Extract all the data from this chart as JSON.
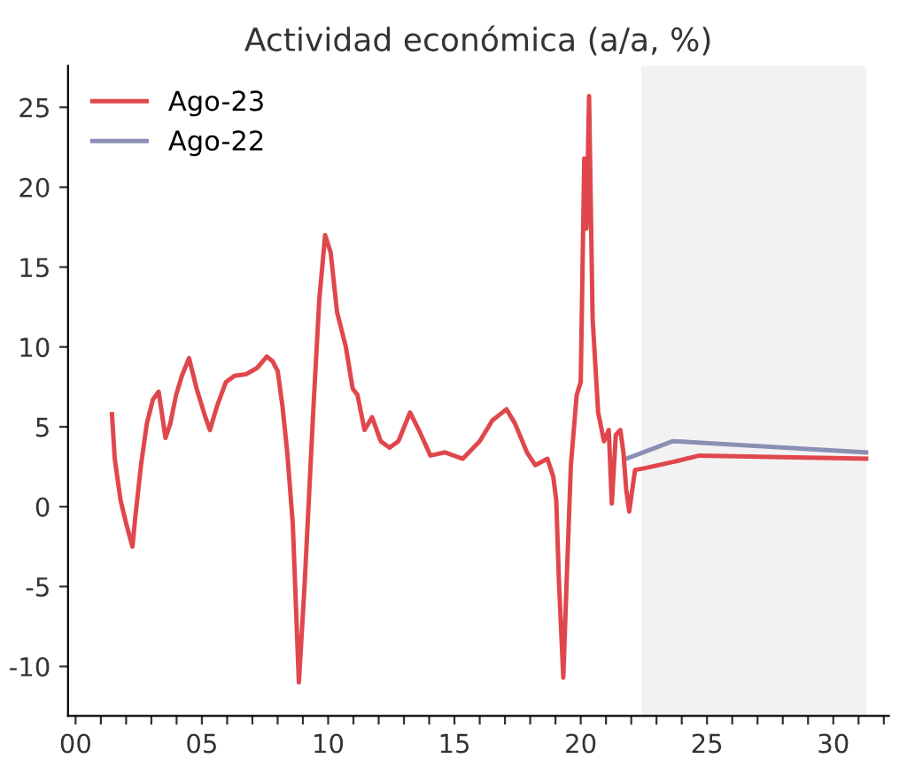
{
  "chart_data": {
    "type": "line",
    "title": "Actividad económica (a/a, %)",
    "series": [
      {
        "name": "Ago-23",
        "color": "#e0474c",
        "x": [
          1.44,
          1.55,
          1.78,
          2.01,
          2.25,
          2.36,
          2.59,
          2.82,
          3.06,
          3.29,
          3.56,
          3.75,
          3.98,
          4.21,
          4.49,
          4.79,
          5.14,
          5.32,
          5.6,
          5.95,
          6.3,
          6.76,
          7.2,
          7.57,
          7.8,
          8.0,
          8.19,
          8.38,
          8.6,
          8.84,
          9.07,
          9.42,
          9.65,
          9.88,
          10.1,
          10.35,
          10.7,
          10.97,
          11.16,
          11.44,
          11.74,
          12.08,
          12.43,
          12.78,
          13.24,
          13.59,
          14.05,
          14.63,
          15.33,
          16.0,
          16.5,
          17.06,
          17.4,
          17.87,
          18.2,
          18.68,
          18.91,
          19.03,
          19.14,
          19.31,
          19.44,
          19.61,
          19.84,
          20.0,
          20.14,
          20.23,
          20.33,
          20.47,
          20.69,
          20.92,
          21.11,
          21.23,
          21.39,
          21.57,
          21.69,
          21.8,
          21.92,
          22.15,
          22.5,
          23.65,
          24.7,
          31.3
        ],
        "values": [
          5.8,
          3.0,
          0.4,
          -1.1,
          -2.5,
          -0.7,
          2.6,
          5.2,
          6.7,
          7.2,
          4.3,
          5.2,
          7.0,
          8.2,
          9.3,
          7.4,
          5.6,
          4.8,
          6.3,
          7.8,
          8.2,
          8.3,
          8.7,
          9.4,
          9.1,
          8.5,
          6.3,
          3.4,
          -1.1,
          -11.0,
          -4.8,
          6.3,
          13.0,
          17.0,
          15.9,
          12.2,
          10.0,
          7.4,
          7.0,
          4.8,
          5.6,
          4.1,
          3.7,
          4.1,
          5.9,
          4.8,
          3.2,
          3.4,
          3.0,
          4.1,
          5.4,
          6.1,
          5.2,
          3.4,
          2.6,
          3.0,
          1.9,
          0.4,
          -4.8,
          -10.7,
          -4.8,
          2.6,
          7.0,
          7.8,
          21.8,
          17.4,
          25.7,
          11.8,
          5.9,
          4.1,
          4.8,
          0.2,
          4.5,
          4.8,
          3.4,
          1.1,
          -0.3,
          2.3,
          2.4,
          2.8,
          3.2,
          3.0
        ]
      },
      {
        "name": "Ago-22",
        "color": "#8a8fb5",
        "x": [
          21.8,
          23.65,
          31.3
        ],
        "values": [
          3.0,
          4.1,
          3.4
        ]
      }
    ],
    "xlim": [
      -0.3,
      32.2
    ],
    "ylim": [
      -13.1,
      27.6
    ],
    "xticks": [
      {
        "value": 0,
        "label": "00"
      },
      {
        "value": 1,
        "label": null
      },
      {
        "value": 2,
        "label": null
      },
      {
        "value": 3,
        "label": null
      },
      {
        "value": 4,
        "label": null
      },
      {
        "value": 5,
        "label": "05"
      },
      {
        "value": 6,
        "label": null
      },
      {
        "value": 7,
        "label": null
      },
      {
        "value": 8,
        "label": null
      },
      {
        "value": 9,
        "label": null
      },
      {
        "value": 10,
        "label": "10"
      },
      {
        "value": 11,
        "label": null
      },
      {
        "value": 12,
        "label": null
      },
      {
        "value": 13,
        "label": null
      },
      {
        "value": 14,
        "label": null
      },
      {
        "value": 15,
        "label": "15"
      },
      {
        "value": 16,
        "label": null
      },
      {
        "value": 17,
        "label": null
      },
      {
        "value": 18,
        "label": null
      },
      {
        "value": 19,
        "label": null
      },
      {
        "value": 20,
        "label": "20"
      },
      {
        "value": 21,
        "label": null
      },
      {
        "value": 22,
        "label": null
      },
      {
        "value": 23,
        "label": null
      },
      {
        "value": 24,
        "label": null
      },
      {
        "value": 25,
        "label": "25"
      },
      {
        "value": 26,
        "label": null
      },
      {
        "value": 27,
        "label": null
      },
      {
        "value": 28,
        "label": null
      },
      {
        "value": 29,
        "label": null
      },
      {
        "value": 30,
        "label": "30"
      },
      {
        "value": 31,
        "label": null
      },
      {
        "value": 32,
        "label": null
      }
    ],
    "yticks": [
      -10,
      -5,
      0,
      5,
      10,
      15,
      20,
      25
    ],
    "bands": [
      {
        "axis": "x",
        "from": 22.4,
        "to": 31.3,
        "color": "#f2f2f2"
      }
    ],
    "legend": "top left",
    "grid": false,
    "marker": "none",
    "line_style": "solid"
  }
}
